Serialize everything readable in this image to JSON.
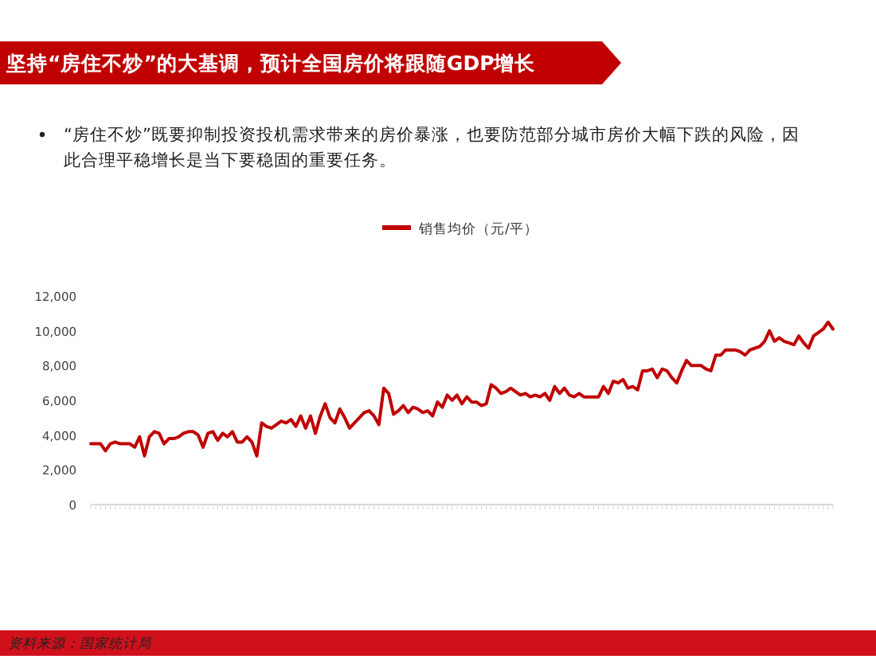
{
  "chart_data": {
    "type": "line",
    "title": "坚持“房住不炒”的大基调，预计全国房价将跟随GDP增长",
    "subtitle": "“房住不炒”既要抑制投资投机需求带来的房价暴涨，也要防范部分城市房价大幅下跌的风险，因此合理平稳增长是当下要稳固的重要任务。",
    "annotations": [
      "资料来源：国家统计局"
    ],
    "legend": "top",
    "ylim": [
      0,
      12000
    ],
    "yticks": [
      {
        "value": 0,
        "label": "0"
      },
      {
        "value": 2000,
        "label": "2,000"
      },
      {
        "value": 4000,
        "label": "4,000"
      },
      {
        "value": 6000,
        "label": "6,000"
      },
      {
        "value": 8000,
        "label": "8,000"
      },
      {
        "value": 10000,
        "label": "10,000"
      },
      {
        "value": 12000,
        "label": "12,000"
      }
    ],
    "categories": [
      null,
      null,
      null,
      null,
      null,
      null,
      null,
      null,
      null,
      null,
      null,
      null,
      null,
      null,
      null,
      null,
      null,
      null,
      null,
      null,
      null,
      null,
      null,
      null,
      null,
      null,
      null,
      null,
      null,
      null,
      null,
      null,
      null,
      null,
      null,
      null,
      null,
      null,
      null,
      null,
      null,
      null,
      null,
      null,
      null,
      null,
      null,
      null,
      null,
      null,
      null,
      null,
      null,
      null,
      null,
      null,
      null,
      null,
      null,
      null,
      null,
      null,
      null,
      null,
      null,
      null,
      null,
      null,
      null,
      null,
      null,
      null,
      null,
      null,
      null,
      null,
      null,
      null,
      null,
      null,
      null,
      null,
      null,
      null,
      null,
      null,
      null,
      null,
      null,
      null,
      null,
      null,
      null,
      null,
      null,
      null,
      null,
      null,
      null,
      null,
      null,
      null,
      null,
      null,
      null,
      null,
      null,
      null,
      null,
      null,
      null,
      null,
      null,
      null,
      null,
      null,
      null,
      null,
      null,
      null,
      null,
      null,
      null,
      null,
      null,
      null,
      null,
      null,
      null,
      null,
      null,
      null,
      null,
      null,
      null,
      null,
      null,
      null,
      null,
      null,
      null,
      null,
      null,
      null,
      null,
      null,
      null,
      null,
      null,
      null,
      null,
      null,
      null
    ],
    "series": [
      {
        "name": "销售均价（元/平）",
        "color": "#c00000",
        "values": [
          3500,
          3500,
          3500,
          3100,
          3500,
          3600,
          3500,
          3500,
          3500,
          3300,
          3900,
          2800,
          3900,
          4200,
          4100,
          3500,
          3800,
          3800,
          3900,
          4100,
          4200,
          4200,
          4000,
          3300,
          4100,
          4200,
          3700,
          4100,
          3900,
          4200,
          3600,
          3600,
          3900,
          3600,
          2800,
          4700,
          4500,
          4400,
          4600,
          4800,
          4700,
          4900,
          4500,
          5100,
          4400,
          5100,
          4100,
          5100,
          5800,
          5000,
          4700,
          5500,
          5000,
          4400,
          4700,
          5000,
          5300,
          5400,
          5100,
          4600,
          6700,
          6400,
          5200,
          5400,
          5700,
          5300,
          5600,
          5500,
          5300,
          5400,
          5100,
          5900,
          5600,
          6300,
          6000,
          6300,
          5800,
          6200,
          5900,
          5900,
          5700,
          5800,
          6900,
          6700,
          6400,
          6500,
          6700,
          6500,
          6300,
          6400,
          6200,
          6300,
          6200,
          6400,
          6000,
          6800,
          6400,
          6700,
          6300,
          6200,
          6400,
          6200,
          6200,
          6200,
          6200,
          6800,
          6400,
          7100,
          7000,
          7200,
          6700,
          6800,
          6600,
          7700,
          7700,
          7800,
          7300,
          7800,
          7700,
          7300,
          7000,
          7700,
          8300,
          8000,
          8000,
          8000,
          7800,
          7700,
          8600,
          8600,
          8900,
          8900,
          8900,
          8800,
          8600,
          8900,
          9000,
          9100,
          9400,
          10000,
          9400,
          9600,
          9400,
          9300,
          9200,
          9700,
          9300,
          9000,
          9700,
          9900,
          10100,
          10500,
          10100
        ]
      }
    ]
  }
}
